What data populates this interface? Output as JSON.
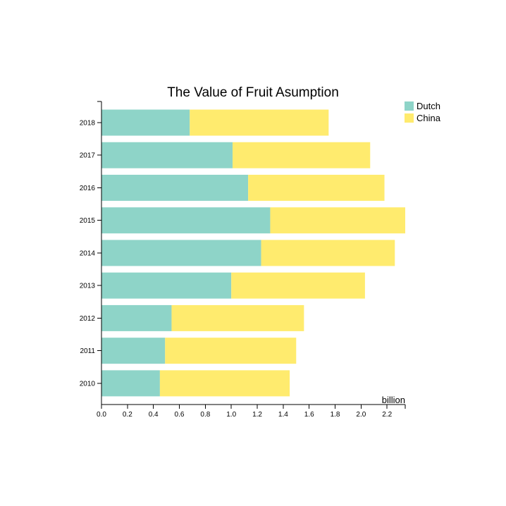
{
  "chart_data": {
    "type": "bar",
    "orientation": "horizontal",
    "stacked": true,
    "title": "The Value of Fruit Asumption",
    "xlabel": "billion",
    "ylabel": "",
    "categories": [
      "2018",
      "2017",
      "2016",
      "2015",
      "2014",
      "2013",
      "2012",
      "2011",
      "2010"
    ],
    "series": [
      {
        "name": "Dutch",
        "color": "#8ed4c8",
        "values": [
          0.68,
          1.01,
          1.13,
          1.3,
          1.23,
          1.0,
          0.54,
          0.49,
          0.45
        ]
      },
      {
        "name": "China",
        "color": "#ffeb6e",
        "values": [
          1.07,
          1.06,
          1.05,
          1.04,
          1.03,
          1.03,
          1.02,
          1.01,
          1.0
        ]
      }
    ],
    "xlim": [
      0,
      2.34
    ],
    "xticks": [
      "0.0",
      "0.2",
      "0.4",
      "0.6",
      "0.8",
      "1.0",
      "1.2",
      "1.4",
      "1.6",
      "1.8",
      "2.0",
      "2.2"
    ],
    "legend_position": "top-right",
    "grid": false
  }
}
